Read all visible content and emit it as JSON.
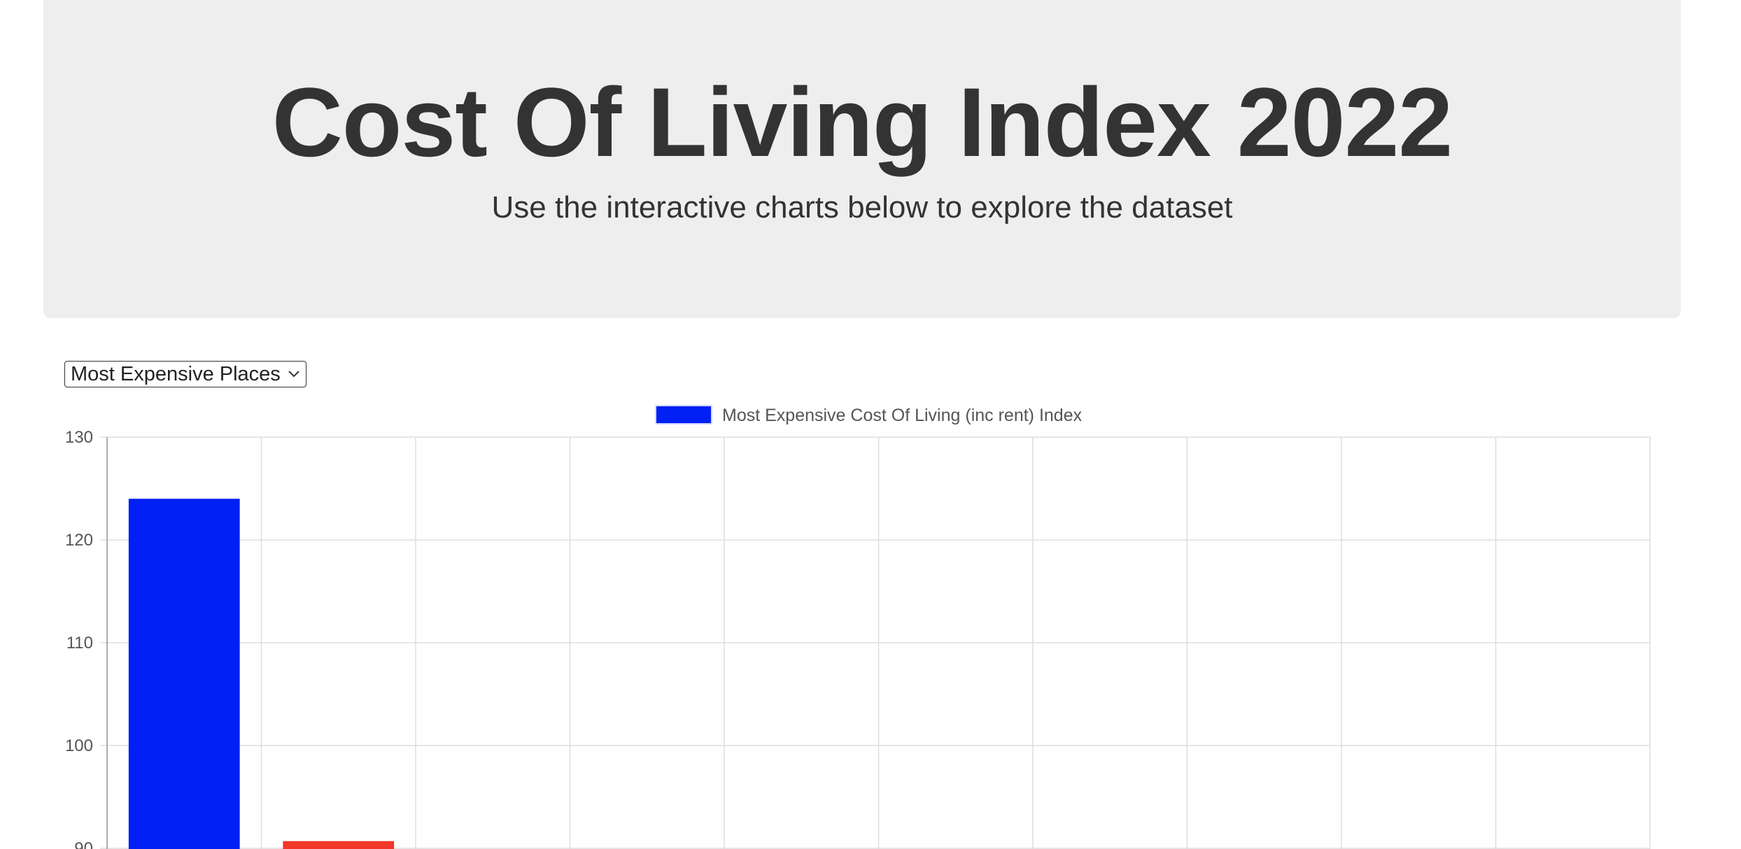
{
  "header": {
    "title": "Cost Of Living Index 2022",
    "subtitle": "Use the interactive charts below to explore the dataset"
  },
  "dropdown": {
    "selected": "Most Expensive Places"
  },
  "colors": {
    "jumbotron_bg": "#eeeeee",
    "bar_primary": "#0020f5",
    "bar_secondary": "#f0372a",
    "grid": "#dddddd",
    "text": "#333333"
  },
  "chart_data": {
    "type": "bar",
    "legend": {
      "label": "Most Expensive Cost Of Living (inc rent) Index",
      "color": "#0020f5",
      "position": "top-center"
    },
    "categories_count": 10,
    "values": [
      124,
      90.7
    ],
    "bar_colors": [
      "#0020f5",
      "#f0372a"
    ],
    "yticks": [
      90,
      100,
      110,
      120,
      130
    ],
    "ylim": [
      90,
      130
    ],
    "grid": true
  }
}
